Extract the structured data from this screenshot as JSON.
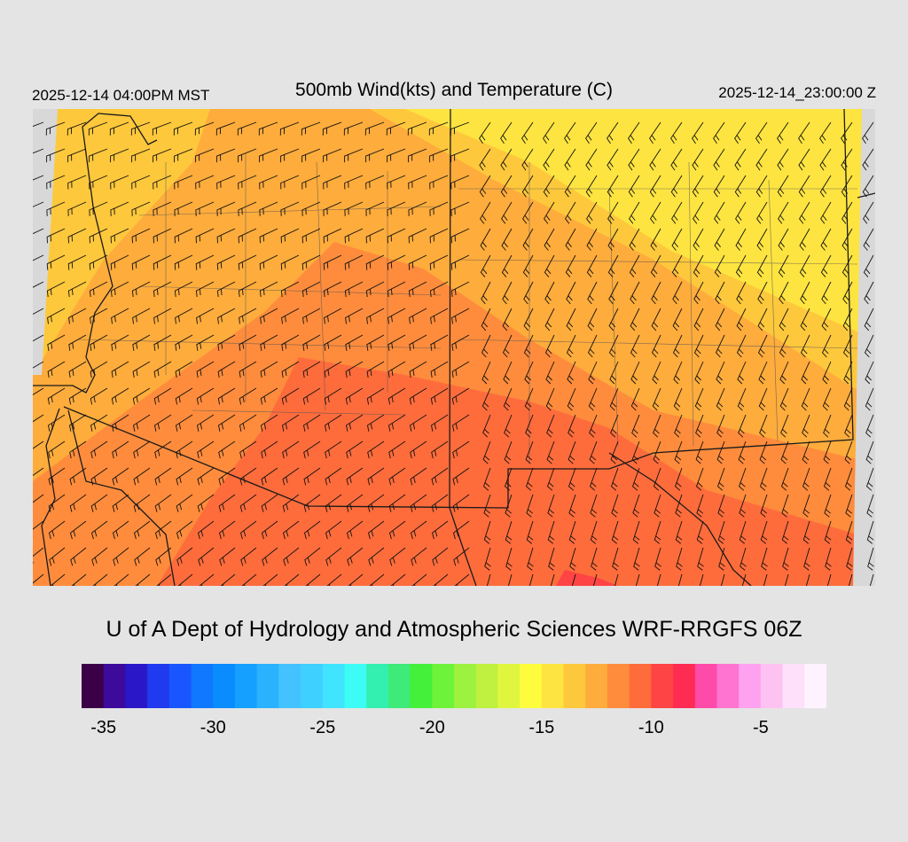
{
  "header": {
    "valid_time_local": "2025-12-14 04:00PM MST",
    "title": "500mb Wind(kts) and Temperature (C)",
    "valid_time_utc": "2025-12-14_23:00:00 Z"
  },
  "footer": {
    "credit": "U of A Dept of Hydrology and Atmospheric Sciences WRF-RRGFS 06Z"
  },
  "colorbar": {
    "colors": [
      "#3b0048",
      "#3d0a9c",
      "#2a18c8",
      "#1f3aef",
      "#1a56ff",
      "#0f78ff",
      "#0a8cff",
      "#15a0ff",
      "#2ab2ff",
      "#44c2ff",
      "#3ed0ff",
      "#40e4ff",
      "#3dfcf6",
      "#34f0b0",
      "#3eea78",
      "#44f03a",
      "#6ef23a",
      "#9cf23e",
      "#c0f040",
      "#e0f63e",
      "#fefc3c",
      "#fee440",
      "#fec83c",
      "#feac3c",
      "#fe8c3c",
      "#fe6c3c",
      "#fe4444",
      "#fe2c52",
      "#fe4aa8",
      "#fe74d0",
      "#fea2f0",
      "#fec2f2",
      "#fee0fa",
      "#fef2fe"
    ],
    "ticks": [
      "-35",
      "-30",
      "-25",
      "-20",
      "-15",
      "-10",
      "-5"
    ]
  },
  "map": {
    "legend": "temperature shading (C) with wind barbs (kts)",
    "background_color": "#d8d8d8"
  }
}
